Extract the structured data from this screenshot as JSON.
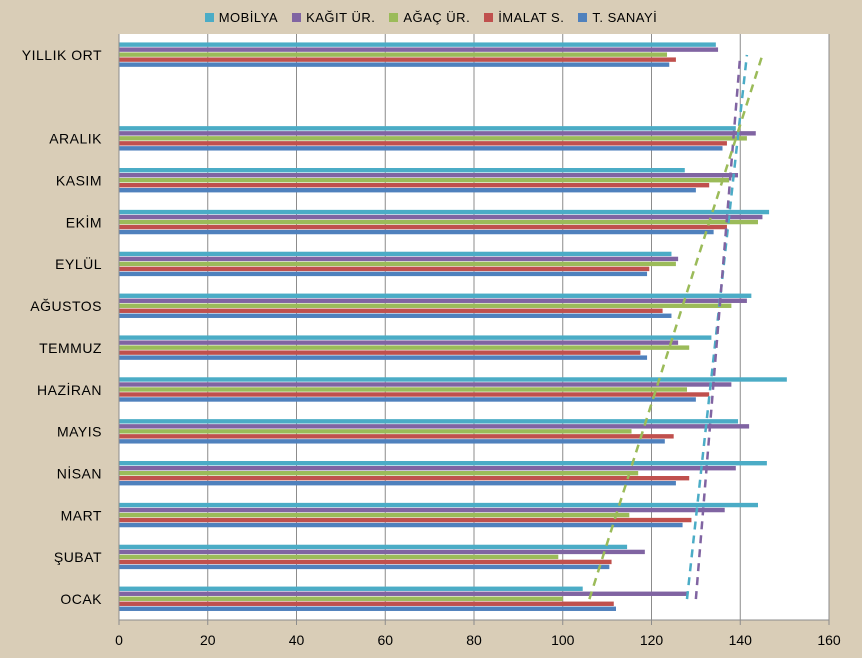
{
  "chart_data": {
    "type": "bar",
    "orientation": "horizontal",
    "categories": [
      "OCAK",
      "ŞUBAT",
      "MART",
      "NİSAN",
      "MAYIS",
      "HAZİRAN",
      "TEMMUZ",
      "AĞUSTOS",
      "EYLÜL",
      "EKİM",
      "KASIM",
      "ARALIK",
      "",
      "YILLIK ORT"
    ],
    "series": [
      {
        "name": "MOBİLYA",
        "color": "#4bacc6",
        "values": [
          104.5,
          114.5,
          144.0,
          146.0,
          139.5,
          150.5,
          133.5,
          142.5,
          124.5,
          146.5,
          127.5,
          139.0,
          null,
          134.5
        ]
      },
      {
        "name": "KAĞIT ÜR.",
        "color": "#8064a2",
        "values": [
          128.0,
          118.5,
          136.5,
          139.0,
          142.0,
          138.0,
          126.0,
          141.5,
          126.0,
          145.0,
          139.5,
          143.5,
          null,
          135.0
        ]
      },
      {
        "name": "AĞAÇ ÜR.",
        "color": "#9bbb59",
        "values": [
          100.0,
          99.0,
          115.0,
          117.0,
          115.5,
          128.0,
          128.5,
          138.0,
          125.5,
          144.0,
          137.5,
          141.5,
          null,
          123.5
        ]
      },
      {
        "name": "İMALAT S.",
        "color": "#c0504d",
        "values": [
          111.5,
          111.0,
          129.0,
          128.5,
          125.0,
          133.0,
          117.5,
          122.5,
          119.5,
          137.0,
          133.0,
          137.0,
          null,
          125.5
        ]
      },
      {
        "name": "T. SANAYİ",
        "color": "#4f81bd",
        "values": [
          112.0,
          110.5,
          127.0,
          125.5,
          123.0,
          130.0,
          119.0,
          124.5,
          119.0,
          134.0,
          130.0,
          136.0,
          null,
          124.0
        ]
      }
    ],
    "trendlines": [
      {
        "series": "MOBİLYA",
        "start": 128.0,
        "end": 141.5
      },
      {
        "series": "KAĞIT ÜR.",
        "start": 130.0,
        "end": 140.0
      },
      {
        "series": "AĞAÇ ÜR.",
        "start": 106.0,
        "end": 145.0
      }
    ],
    "xlim": [
      0,
      160
    ],
    "xticks": [
      0,
      20,
      40,
      60,
      80,
      100,
      120,
      140,
      160
    ],
    "grid": "vertical",
    "legend_position": "top"
  }
}
